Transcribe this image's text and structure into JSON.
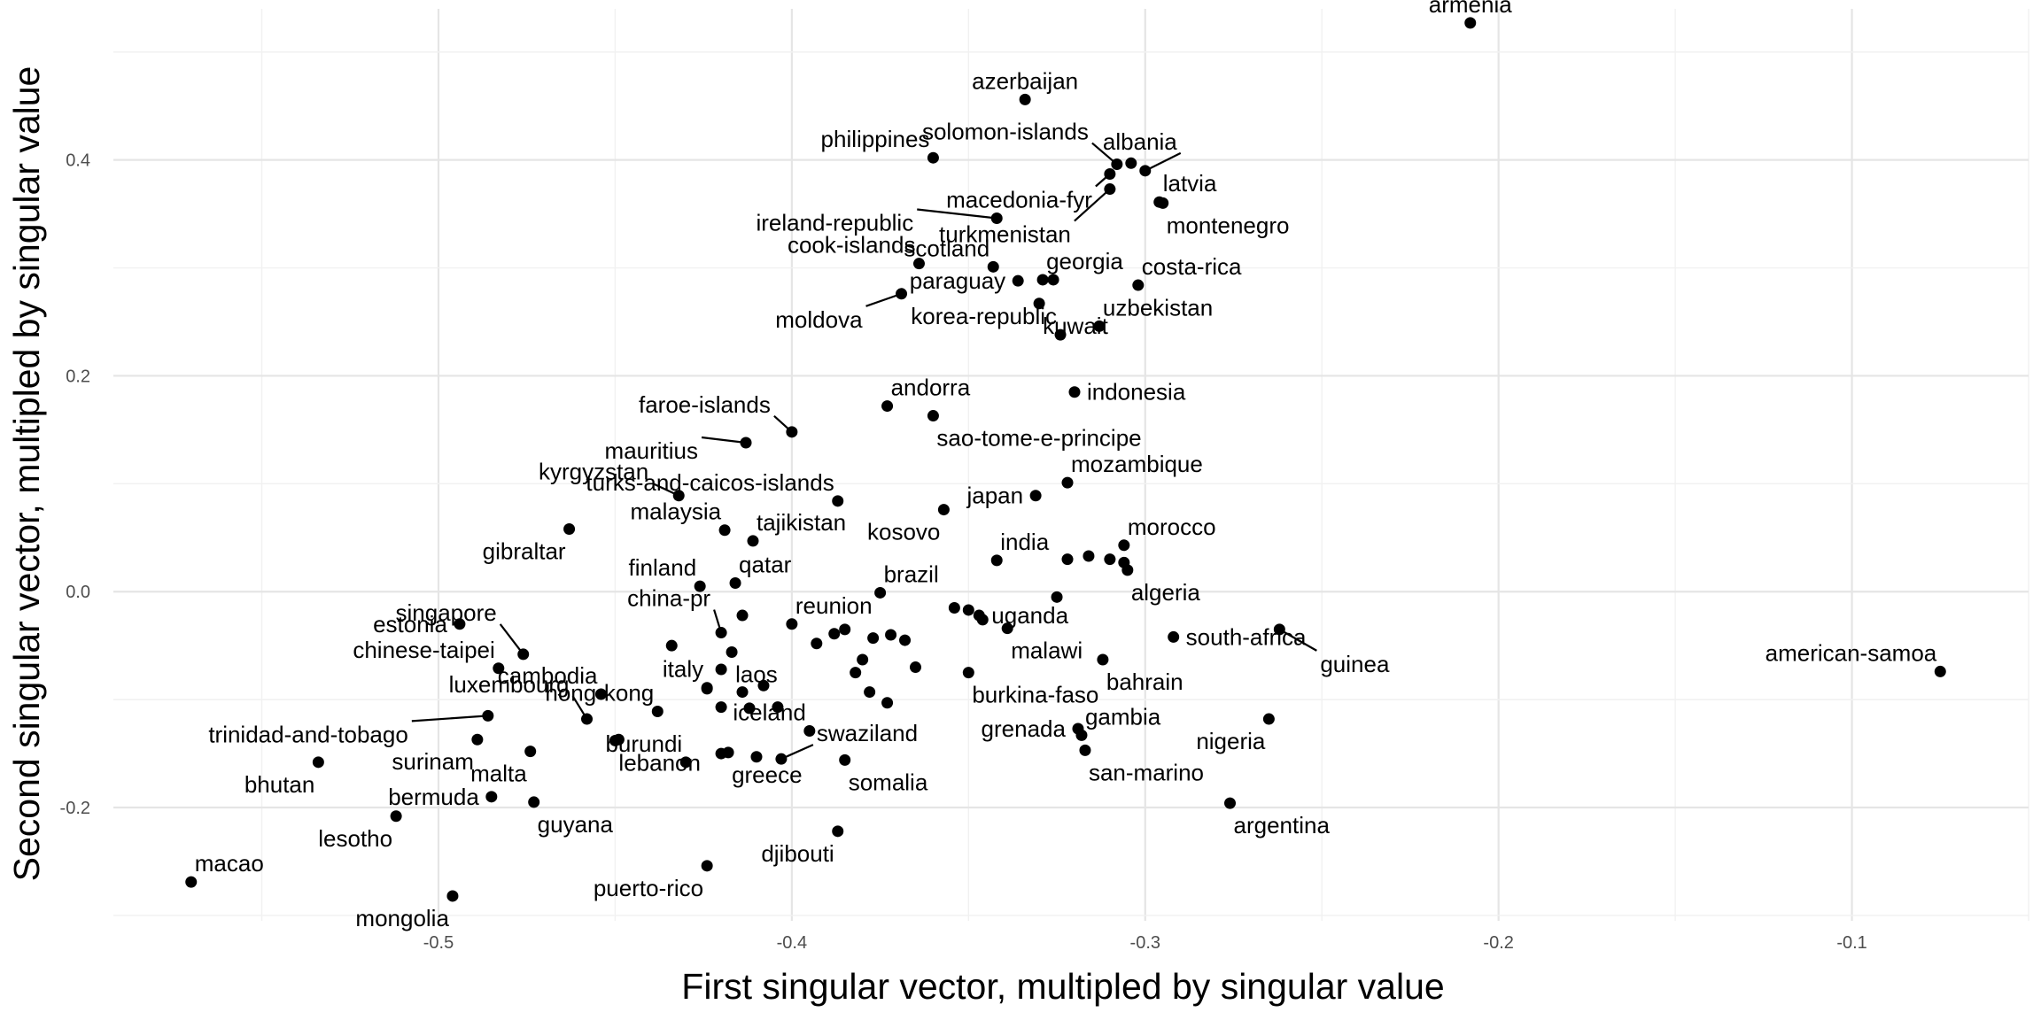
{
  "chart_data": {
    "type": "scatter",
    "title": "",
    "xlabel": "First singular vector, multipled by singular value",
    "ylabel": "Second singular vector, multipled by singular value",
    "xlim": [
      -0.592,
      -0.05
    ],
    "ylim": [
      -0.305,
      0.54
    ],
    "xticks": [
      -0.5,
      -0.4,
      -0.3,
      -0.2,
      -0.1
    ],
    "xtick_labels": [
      "-0.5",
      "-0.4",
      "-0.3",
      "-0.2",
      "-0.1"
    ],
    "yticks": [
      -0.2,
      0.0,
      0.2,
      0.4
    ],
    "ytick_labels": [
      "-0.2",
      "0.0",
      "0.2",
      "0.4"
    ],
    "grid": true,
    "legend": "none",
    "points": [
      {
        "label": "armenia",
        "x": -0.208,
        "y": 0.527,
        "anchor": "above"
      },
      {
        "label": "azerbaijan",
        "x": -0.334,
        "y": 0.456,
        "anchor": "above"
      },
      {
        "label": "philippines",
        "x": -0.36,
        "y": 0.402,
        "anchor": "upper-left"
      },
      {
        "label": "solomon-islands",
        "x": -0.308,
        "y": 0.396,
        "anchor": "upper-left",
        "leader": true
      },
      {
        "label": "albania",
        "x": -0.3,
        "y": 0.39,
        "anchor": "upper-left",
        "leader": true
      },
      {
        "label": "macedonia-fyr",
        "x": -0.31,
        "y": 0.387,
        "anchor": "left",
        "leader": true
      },
      {
        "label": "latvia",
        "x": -0.296,
        "y": 0.361,
        "anchor": "upper-right"
      },
      {
        "label": "montenegro",
        "x": -0.295,
        "y": 0.36,
        "anchor": "lower-right"
      },
      {
        "label": "turkmenistan",
        "x": -0.31,
        "y": 0.373,
        "anchor": "lower-left",
        "leader": true
      },
      {
        "label": "ireland-republic",
        "x": -0.342,
        "y": 0.346,
        "anchor": "left",
        "leader": true
      },
      {
        "label": "cook-islands",
        "x": -0.364,
        "y": 0.304,
        "anchor": "upper-left"
      },
      {
        "label": "scotland",
        "x": -0.343,
        "y": 0.301,
        "anchor": "upper-left"
      },
      {
        "label": "georgia",
        "x": -0.329,
        "y": 0.289,
        "anchor": "upper-right"
      },
      {
        "label": "costa-rica",
        "x": -0.302,
        "y": 0.284,
        "anchor": "upper-right"
      },
      {
        "label": "paraguay",
        "x": -0.336,
        "y": 0.288,
        "anchor": "left"
      },
      {
        "label": "moldova",
        "x": -0.369,
        "y": 0.276,
        "anchor": "left",
        "leader": true
      },
      {
        "label": "uzbekistan",
        "x": -0.313,
        "y": 0.246,
        "anchor": "upper-right"
      },
      {
        "label": "korea-republic",
        "x": -0.324,
        "y": 0.238,
        "anchor": "upper-left"
      },
      {
        "label": "kuwait",
        "x": -0.33,
        "y": 0.267,
        "anchor": "lower-right"
      },
      {
        "label": "andorra",
        "x": -0.373,
        "y": 0.172,
        "anchor": "upper-right"
      },
      {
        "label": "indonesia",
        "x": -0.32,
        "y": 0.185,
        "anchor": "right"
      },
      {
        "label": "faroe-islands",
        "x": -0.4,
        "y": 0.148,
        "anchor": "upper-left",
        "leader": true
      },
      {
        "label": "sao-tome-e-principe",
        "x": -0.36,
        "y": 0.163,
        "anchor": "lower-right"
      },
      {
        "label": "mauritius",
        "x": -0.413,
        "y": 0.138,
        "anchor": "left",
        "leader": true
      },
      {
        "label": "mozambique",
        "x": -0.322,
        "y": 0.101,
        "anchor": "upper-right"
      },
      {
        "label": "kyrgyzstan",
        "x": -0.432,
        "y": 0.089,
        "anchor": "upper-left",
        "leader": true
      },
      {
        "label": "turks-and-caicos-islands",
        "x": -0.387,
        "y": 0.084,
        "anchor": "upper-left"
      },
      {
        "label": "japan",
        "x": -0.331,
        "y": 0.089,
        "anchor": "left"
      },
      {
        "label": "malaysia",
        "x": -0.419,
        "y": 0.057,
        "anchor": "upper-left"
      },
      {
        "label": "tajikistan",
        "x": -0.411,
        "y": 0.047,
        "anchor": "upper-right"
      },
      {
        "label": "kosovo",
        "x": -0.357,
        "y": 0.076,
        "anchor": "lower-left"
      },
      {
        "label": "gibraltar",
        "x": -0.463,
        "y": 0.058,
        "anchor": "lower-left"
      },
      {
        "label": "morocco",
        "x": -0.306,
        "y": 0.043,
        "anchor": "upper-right"
      },
      {
        "label": "india",
        "x": -0.342,
        "y": 0.029,
        "anchor": "upper-right"
      },
      {
        "label": "finland",
        "x": -0.426,
        "y": 0.005,
        "anchor": "upper-left"
      },
      {
        "label": "qatar",
        "x": -0.416,
        "y": 0.008,
        "anchor": "upper-right"
      },
      {
        "label": "brazil",
        "x": -0.375,
        "y": -0.001,
        "anchor": "upper-right"
      },
      {
        "label": "algeria",
        "x": -0.305,
        "y": 0.02,
        "anchor": "lower-right"
      },
      {
        "label": "estonia",
        "x": -0.494,
        "y": -0.03,
        "anchor": "left"
      },
      {
        "label": "singapore",
        "x": -0.476,
        "y": -0.058,
        "anchor": "upper-left",
        "leader": true
      },
      {
        "label": "china-pr",
        "x": -0.42,
        "y": -0.038,
        "anchor": "upper-left",
        "leader": true
      },
      {
        "label": "reunion",
        "x": -0.4,
        "y": -0.03,
        "anchor": "upper-right"
      },
      {
        "label": "uganda",
        "x": -0.347,
        "y": -0.022,
        "anchor": "right"
      },
      {
        "label": "south-africa",
        "x": -0.292,
        "y": -0.042,
        "anchor": "right"
      },
      {
        "label": "guinea",
        "x": -0.262,
        "y": -0.035,
        "anchor": "lower-right",
        "leader": true
      },
      {
        "label": "american-samoa",
        "x": -0.075,
        "y": -0.074,
        "anchor": "upper-left"
      },
      {
        "label": "chinese-taipei",
        "x": -0.483,
        "y": -0.071,
        "anchor": "upper-left"
      },
      {
        "label": "cambodia",
        "x": -0.454,
        "y": -0.095,
        "anchor": "upper-left"
      },
      {
        "label": "italy",
        "x": -0.424,
        "y": -0.089,
        "anchor": "upper-left"
      },
      {
        "label": "laos",
        "x": -0.417,
        "y": -0.056,
        "anchor": "lower-right"
      },
      {
        "label": "malawi",
        "x": -0.339,
        "y": -0.034,
        "anchor": "lower-right"
      },
      {
        "label": "bahrain",
        "x": -0.312,
        "y": -0.063,
        "anchor": "lower-right"
      },
      {
        "label": "luxembourg",
        "x": -0.458,
        "y": -0.118,
        "anchor": "upper-left",
        "leader": true
      },
      {
        "label": "hong-kong",
        "x": -0.438,
        "y": -0.111,
        "anchor": "upper-left"
      },
      {
        "label": "burkina-faso",
        "x": -0.35,
        "y": -0.075,
        "anchor": "lower-right"
      },
      {
        "label": "trinidad-and-tobago",
        "x": -0.486,
        "y": -0.115,
        "anchor": "left",
        "leader": true
      },
      {
        "label": "grenada",
        "x": -0.319,
        "y": -0.127,
        "anchor": "left"
      },
      {
        "label": "gambia",
        "x": -0.318,
        "y": -0.133,
        "anchor": "upper-right"
      },
      {
        "label": "nigeria",
        "x": -0.265,
        "y": -0.118,
        "anchor": "lower-left"
      },
      {
        "label": "surinam",
        "x": -0.489,
        "y": -0.137,
        "anchor": "lower-left"
      },
      {
        "label": "burundi",
        "x": -0.43,
        "y": -0.158,
        "anchor": "upper-left"
      },
      {
        "label": "iceland",
        "x": -0.395,
        "y": -0.129,
        "anchor": "upper-left"
      },
      {
        "label": "swaziland",
        "x": -0.403,
        "y": -0.155,
        "anchor": "upper-right",
        "leader": true
      },
      {
        "label": "bhutan",
        "x": -0.534,
        "y": -0.158,
        "anchor": "lower-left"
      },
      {
        "label": "malta",
        "x": -0.474,
        "y": -0.148,
        "anchor": "lower-left"
      },
      {
        "label": "lebanon",
        "x": -0.45,
        "y": -0.138,
        "anchor": "lower-right"
      },
      {
        "label": "greece",
        "x": -0.418,
        "y": -0.149,
        "anchor": "lower-right"
      },
      {
        "label": "somalia",
        "x": -0.385,
        "y": -0.156,
        "anchor": "lower-right"
      },
      {
        "label": "san-marino",
        "x": -0.317,
        "y": -0.147,
        "anchor": "lower-right"
      },
      {
        "label": "bermuda",
        "x": -0.485,
        "y": -0.19,
        "anchor": "left"
      },
      {
        "label": "guyana",
        "x": -0.473,
        "y": -0.195,
        "anchor": "lower-right"
      },
      {
        "label": "argentina",
        "x": -0.276,
        "y": -0.196,
        "anchor": "lower-right"
      },
      {
        "label": "lesotho",
        "x": -0.512,
        "y": -0.208,
        "anchor": "lower-left"
      },
      {
        "label": "djibouti",
        "x": -0.387,
        "y": -0.222,
        "anchor": "lower-left"
      },
      {
        "label": "macao",
        "x": -0.57,
        "y": -0.269,
        "anchor": "upper-right"
      },
      {
        "label": "puerto-rico",
        "x": -0.424,
        "y": -0.254,
        "anchor": "lower-left"
      },
      {
        "label": "mongolia",
        "x": -0.496,
        "y": -0.282,
        "anchor": "lower-left"
      },
      {
        "label": "",
        "x": -0.304,
        "y": 0.397
      },
      {
        "label": "",
        "x": -0.326,
        "y": 0.289
      },
      {
        "label": "",
        "x": -0.35,
        "y": -0.017
      },
      {
        "label": "",
        "x": -0.354,
        "y": -0.015
      },
      {
        "label": "",
        "x": -0.346,
        "y": -0.026
      },
      {
        "label": "",
        "x": -0.368,
        "y": -0.045
      },
      {
        "label": "",
        "x": -0.372,
        "y": -0.04
      },
      {
        "label": "",
        "x": -0.377,
        "y": -0.043
      },
      {
        "label": "",
        "x": -0.385,
        "y": -0.035
      },
      {
        "label": "",
        "x": -0.388,
        "y": -0.039
      },
      {
        "label": "",
        "x": -0.38,
        "y": -0.063
      },
      {
        "label": "",
        "x": -0.382,
        "y": -0.075
      },
      {
        "label": "",
        "x": -0.365,
        "y": -0.07
      },
      {
        "label": "",
        "x": -0.373,
        "y": -0.103
      },
      {
        "label": "",
        "x": -0.378,
        "y": -0.093
      },
      {
        "label": "",
        "x": -0.393,
        "y": -0.048
      },
      {
        "label": "",
        "x": -0.414,
        "y": -0.022
      },
      {
        "label": "",
        "x": -0.408,
        "y": -0.087
      },
      {
        "label": "",
        "x": -0.404,
        "y": -0.107
      },
      {
        "label": "",
        "x": -0.414,
        "y": -0.093
      },
      {
        "label": "",
        "x": -0.424,
        "y": -0.09
      },
      {
        "label": "",
        "x": -0.412,
        "y": -0.108
      },
      {
        "label": "",
        "x": -0.42,
        "y": -0.072
      },
      {
        "label": "",
        "x": -0.434,
        "y": -0.05
      },
      {
        "label": "",
        "x": -0.42,
        "y": -0.15
      },
      {
        "label": "",
        "x": -0.41,
        "y": -0.153
      },
      {
        "label": "",
        "x": -0.42,
        "y": -0.107
      },
      {
        "label": "",
        "x": -0.31,
        "y": 0.03
      },
      {
        "label": "",
        "x": -0.306,
        "y": 0.027
      },
      {
        "label": "",
        "x": -0.316,
        "y": 0.033
      },
      {
        "label": "",
        "x": -0.325,
        "y": -0.005
      },
      {
        "label": "",
        "x": -0.449,
        "y": -0.137
      },
      {
        "label": "",
        "x": -0.322,
        "y": 0.03
      }
    ]
  }
}
